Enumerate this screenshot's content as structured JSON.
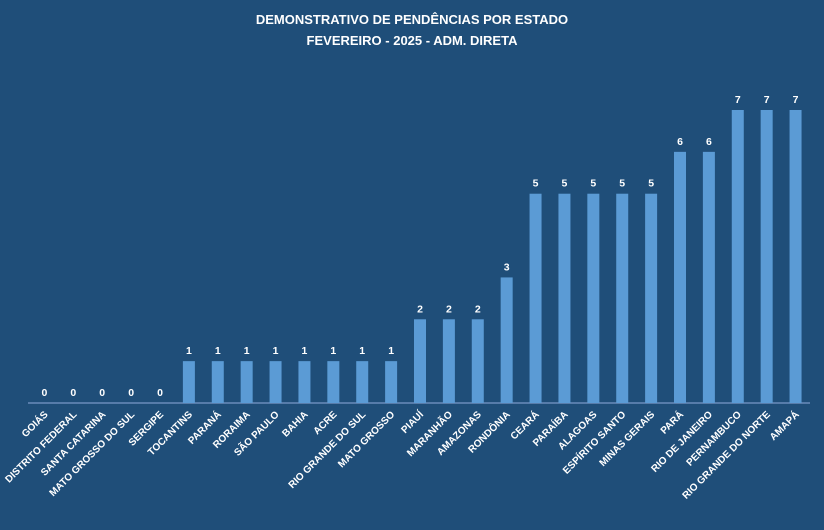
{
  "chart_data": {
    "type": "bar",
    "title": "DEMONSTRATIVO DE PENDÊNCIAS POR ESTADO",
    "subtitle": "FEVEREIRO - 2025 - ADM. DIRETA",
    "categories": [
      "GOIÁS",
      "DISTRITO FEDERAL",
      "SANTA CATARINA",
      "MATO GROSSO DO SUL",
      "SERGIPE",
      "TOCANTINS",
      "PARANÁ",
      "RORAIMA",
      "SÃO PAULO",
      "BAHIA",
      "ACRE",
      "RIO GRANDE DO SUL",
      "MATO GROSSO",
      "PIAUÍ",
      "MARANHÃO",
      "AMAZONAS",
      "RONDÔNIA",
      "CEARÁ",
      "PARAÍBA",
      "ALAGOAS",
      "ESPÍRITO SANTO",
      "MINAS GERAIS",
      "PARÁ",
      "RIO DE JANEIRO",
      "PERNAMBUCO",
      "RIO GRANDE DO NORTE",
      "AMAPÁ"
    ],
    "values": [
      0,
      0,
      0,
      0,
      0,
      1,
      1,
      1,
      1,
      1,
      1,
      1,
      1,
      2,
      2,
      2,
      3,
      5,
      5,
      5,
      5,
      5,
      6,
      6,
      7,
      7,
      7
    ],
    "ylim": [
      0,
      7
    ],
    "grid": false,
    "legend": "none",
    "colors": {
      "background": "#1f4e79",
      "bar": "#5b9bd5",
      "text": "#ffffff",
      "axis": "#8faadc"
    }
  }
}
